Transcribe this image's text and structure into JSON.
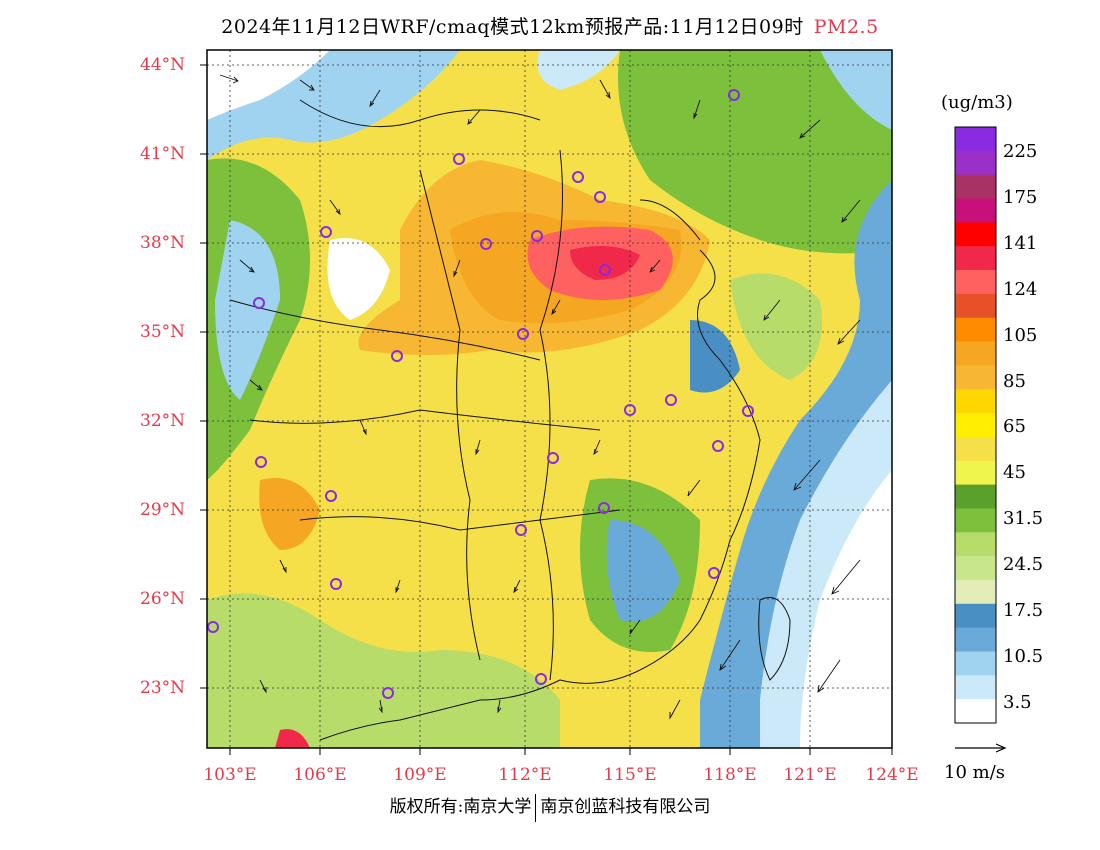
{
  "title": "2024年11月12日WRF/cmaq模式12km预报产品:11月12日09时",
  "pollutant": "PM2.5",
  "axes": {
    "lat_labels": [
      "44°N",
      "41°N",
      "38°N",
      "35°N",
      "32°N",
      "29°N",
      "26°N",
      "23°N"
    ],
    "lon_labels": [
      "103°E",
      "106°E",
      "109°E",
      "112°E",
      "115°E",
      "118°E",
      "121°E",
      "124°E"
    ],
    "lat_values": [
      44,
      41,
      38,
      35,
      32,
      29,
      26,
      23
    ],
    "lon_values": [
      103,
      106,
      109,
      112,
      115,
      118,
      121,
      124
    ]
  },
  "colorbar": {
    "unit": "(ug/m3)",
    "labels": [
      "225",
      "175",
      "141",
      "124",
      "105",
      "85",
      "65",
      "45",
      "31.5",
      "24.5",
      "17.5",
      "10.5",
      "3.5"
    ],
    "colors_top_to_bottom": [
      "#8a2be2",
      "#9b30c8",
      "#a83262",
      "#c8107a",
      "#ff0000",
      "#f0284a",
      "#ff6060",
      "#e8502a",
      "#ff8c00",
      "#f5a623",
      "#f7b733",
      "#ffd700",
      "#ffee00",
      "#f5e04a",
      "#f0f54e",
      "#5aa02c",
      "#7cc03c",
      "#b8dc6a",
      "#c8e68a",
      "#e2edb8",
      "#4a8fc4",
      "#6aaad8",
      "#9fd3f0",
      "#cbe9f8",
      "#ffffff"
    ]
  },
  "wind_reference": "10 m/s",
  "footer": {
    "left": "版权所有:南京大学",
    "right": "南京创蓝科技有限公司"
  },
  "colors": {
    "accent": "#e8384a"
  }
}
